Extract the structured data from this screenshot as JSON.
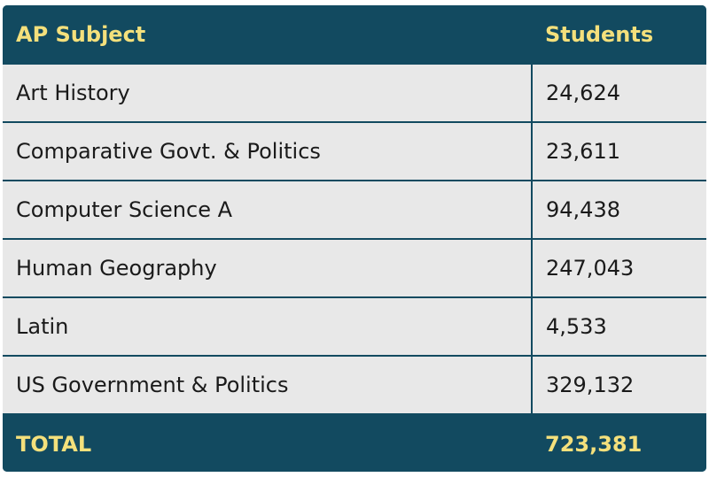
{
  "chart_data": {
    "type": "table",
    "columns": [
      "AP Subject",
      "Students"
    ],
    "rows": [
      {
        "subject": "Art History",
        "students": "24,624"
      },
      {
        "subject": "Comparative Govt. & Politics",
        "students": "23,611"
      },
      {
        "subject": "Computer Science A",
        "students": "94,438"
      },
      {
        "subject": "Human Geography",
        "students": "247,043"
      },
      {
        "subject": "Latin",
        "students": "4,533"
      },
      {
        "subject": "US Government & Politics",
        "students": "329,132"
      }
    ],
    "total": {
      "label": "TOTAL",
      "students": "723,381"
    }
  },
  "colors": {
    "header_bg": "#124a60",
    "header_text": "#f4e07c",
    "row_bg": "#e8e8e8",
    "row_text": "#1a1a1a"
  }
}
